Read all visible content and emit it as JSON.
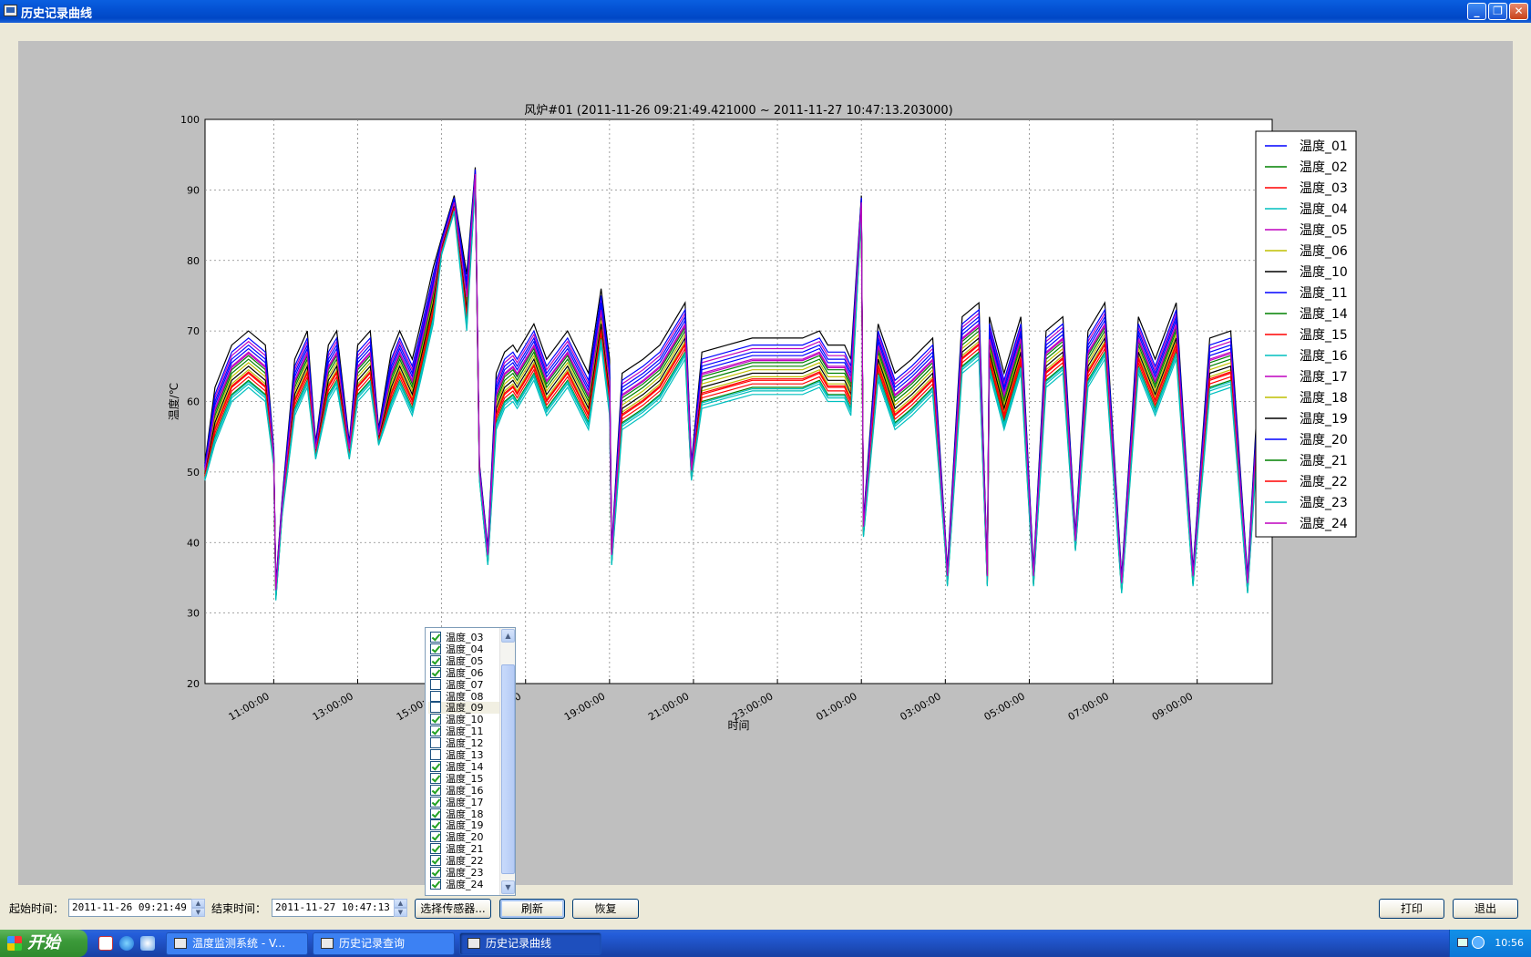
{
  "window": {
    "title": "历史记录曲线"
  },
  "chart_data": {
    "type": "line",
    "title": "风炉#01 (2011-11-26 09:21:49.421000 ~ 2011-11-27 10:47:13.203000)",
    "xlabel": "时间",
    "ylabel": "温度/℃",
    "ylim": [
      20,
      100
    ],
    "xlim": [
      "2011-11-26 09:21:49",
      "2011-11-27 10:47:13"
    ],
    "x_ticks": [
      "11:00:00",
      "13:00:00",
      "15:00:00",
      "17:00:00",
      "19:00:00",
      "21:00:00",
      "23:00:00",
      "01:00:00",
      "03:00:00",
      "05:00:00",
      "07:00:00",
      "09:00:00"
    ],
    "y_ticks": [
      20,
      30,
      40,
      50,
      60,
      70,
      80,
      90,
      100
    ],
    "grid": true,
    "legend_position": "top-right",
    "series": [
      {
        "name": "温度_01",
        "color": "#0000ff"
      },
      {
        "name": "温度_02",
        "color": "#008000"
      },
      {
        "name": "温度_03",
        "color": "#ff0000"
      },
      {
        "name": "温度_04",
        "color": "#00bfbf"
      },
      {
        "name": "温度_05",
        "color": "#bf00bf"
      },
      {
        "name": "温度_06",
        "color": "#bfbf00"
      },
      {
        "name": "温度_10",
        "color": "#000000"
      },
      {
        "name": "温度_11",
        "color": "#0000ff"
      },
      {
        "name": "温度_14",
        "color": "#008000"
      },
      {
        "name": "温度_15",
        "color": "#ff0000"
      },
      {
        "name": "温度_16",
        "color": "#00bfbf"
      },
      {
        "name": "温度_17",
        "color": "#bf00bf"
      },
      {
        "name": "温度_18",
        "color": "#bfbf00"
      },
      {
        "name": "温度_19",
        "color": "#000000"
      },
      {
        "name": "温度_20",
        "color": "#0000ff"
      },
      {
        "name": "温度_21",
        "color": "#008000"
      },
      {
        "name": "温度_22",
        "color": "#ff0000"
      },
      {
        "name": "温度_23",
        "color": "#00bfbf"
      },
      {
        "name": "温度_24",
        "color": "#bf00bf"
      }
    ],
    "base_curve": {
      "hours": [
        9.36,
        9.6,
        10.0,
        10.4,
        10.8,
        11.0,
        11.05,
        11.2,
        11.5,
        11.8,
        12.0,
        12.3,
        12.5,
        12.8,
        13.0,
        13.3,
        13.5,
        13.8,
        14.0,
        14.3,
        14.5,
        14.8,
        15.0,
        15.3,
        15.6,
        15.8,
        15.9,
        16.1,
        16.3,
        16.5,
        16.7,
        16.8,
        17.2,
        17.5,
        18.0,
        18.5,
        18.8,
        19.0,
        19.05,
        19.3,
        19.8,
        20.2,
        20.8,
        20.95,
        21.2,
        21.8,
        22.4,
        23.0,
        23.6,
        24.0,
        24.2,
        24.6,
        24.75,
        25.0,
        25.05,
        25.4,
        25.8,
        26.2,
        26.7,
        27.0,
        27.05,
        27.4,
        27.8,
        28.0,
        28.05,
        28.4,
        28.8,
        29.1,
        29.4,
        29.8,
        30.1,
        30.4,
        30.8,
        31.2,
        31.6,
        32.0,
        32.5,
        32.9,
        33.3,
        33.8,
        34.2,
        34.5,
        34.8
      ],
      "values": [
        50,
        58,
        64,
        66,
        64,
        52,
        33,
        45,
        62,
        66,
        53,
        64,
        66,
        53,
        64,
        66,
        55,
        63,
        66,
        62,
        67,
        75,
        82,
        88,
        74,
        92,
        50,
        38,
        60,
        63,
        64,
        63,
        67,
        62,
        66,
        60,
        72,
        62,
        38,
        60,
        62,
        64,
        70,
        50,
        63,
        64,
        65,
        65,
        65,
        66,
        64,
        64,
        62,
        88,
        42,
        67,
        60,
        62,
        65,
        40,
        35,
        68,
        70,
        35,
        68,
        60,
        68,
        35,
        66,
        68,
        40,
        66,
        70,
        34,
        68,
        62,
        70,
        35,
        65,
        66,
        34,
        63,
        62
      ]
    }
  },
  "sensor_list": {
    "items": [
      {
        "label": "温度_03",
        "checked": true
      },
      {
        "label": "温度_04",
        "checked": true
      },
      {
        "label": "温度_05",
        "checked": true
      },
      {
        "label": "温度_06",
        "checked": true
      },
      {
        "label": "温度_07",
        "checked": false
      },
      {
        "label": "温度_08",
        "checked": false
      },
      {
        "label": "温度_09",
        "checked": false
      },
      {
        "label": "温度_10",
        "checked": true
      },
      {
        "label": "温度_11",
        "checked": true
      },
      {
        "label": "温度_12",
        "checked": false
      },
      {
        "label": "温度_13",
        "checked": false
      },
      {
        "label": "温度_14",
        "checked": true
      },
      {
        "label": "温度_15",
        "checked": true
      },
      {
        "label": "温度_16",
        "checked": true
      },
      {
        "label": "温度_17",
        "checked": true
      },
      {
        "label": "温度_18",
        "checked": true
      },
      {
        "label": "温度_19",
        "checked": true
      },
      {
        "label": "温度_20",
        "checked": true
      },
      {
        "label": "温度_21",
        "checked": true
      },
      {
        "label": "温度_22",
        "checked": true
      },
      {
        "label": "温度_23",
        "checked": true
      },
      {
        "label": "温度_24",
        "checked": true
      }
    ]
  },
  "controls": {
    "start_label": "起始时间：",
    "start_value": "2011-11-26 09:21:49",
    "end_label": "结束时间：",
    "end_value": "2011-11-27 10:47:13",
    "select_sensor": "选择传感器...",
    "refresh": "刷新",
    "restore": "恢复",
    "print": "打印",
    "exit": "退出"
  },
  "taskbar": {
    "start": "开始",
    "tasks": [
      "温度监测系统 - V...",
      "历史记录查询",
      "历史记录曲线"
    ],
    "clock": "10:56"
  }
}
